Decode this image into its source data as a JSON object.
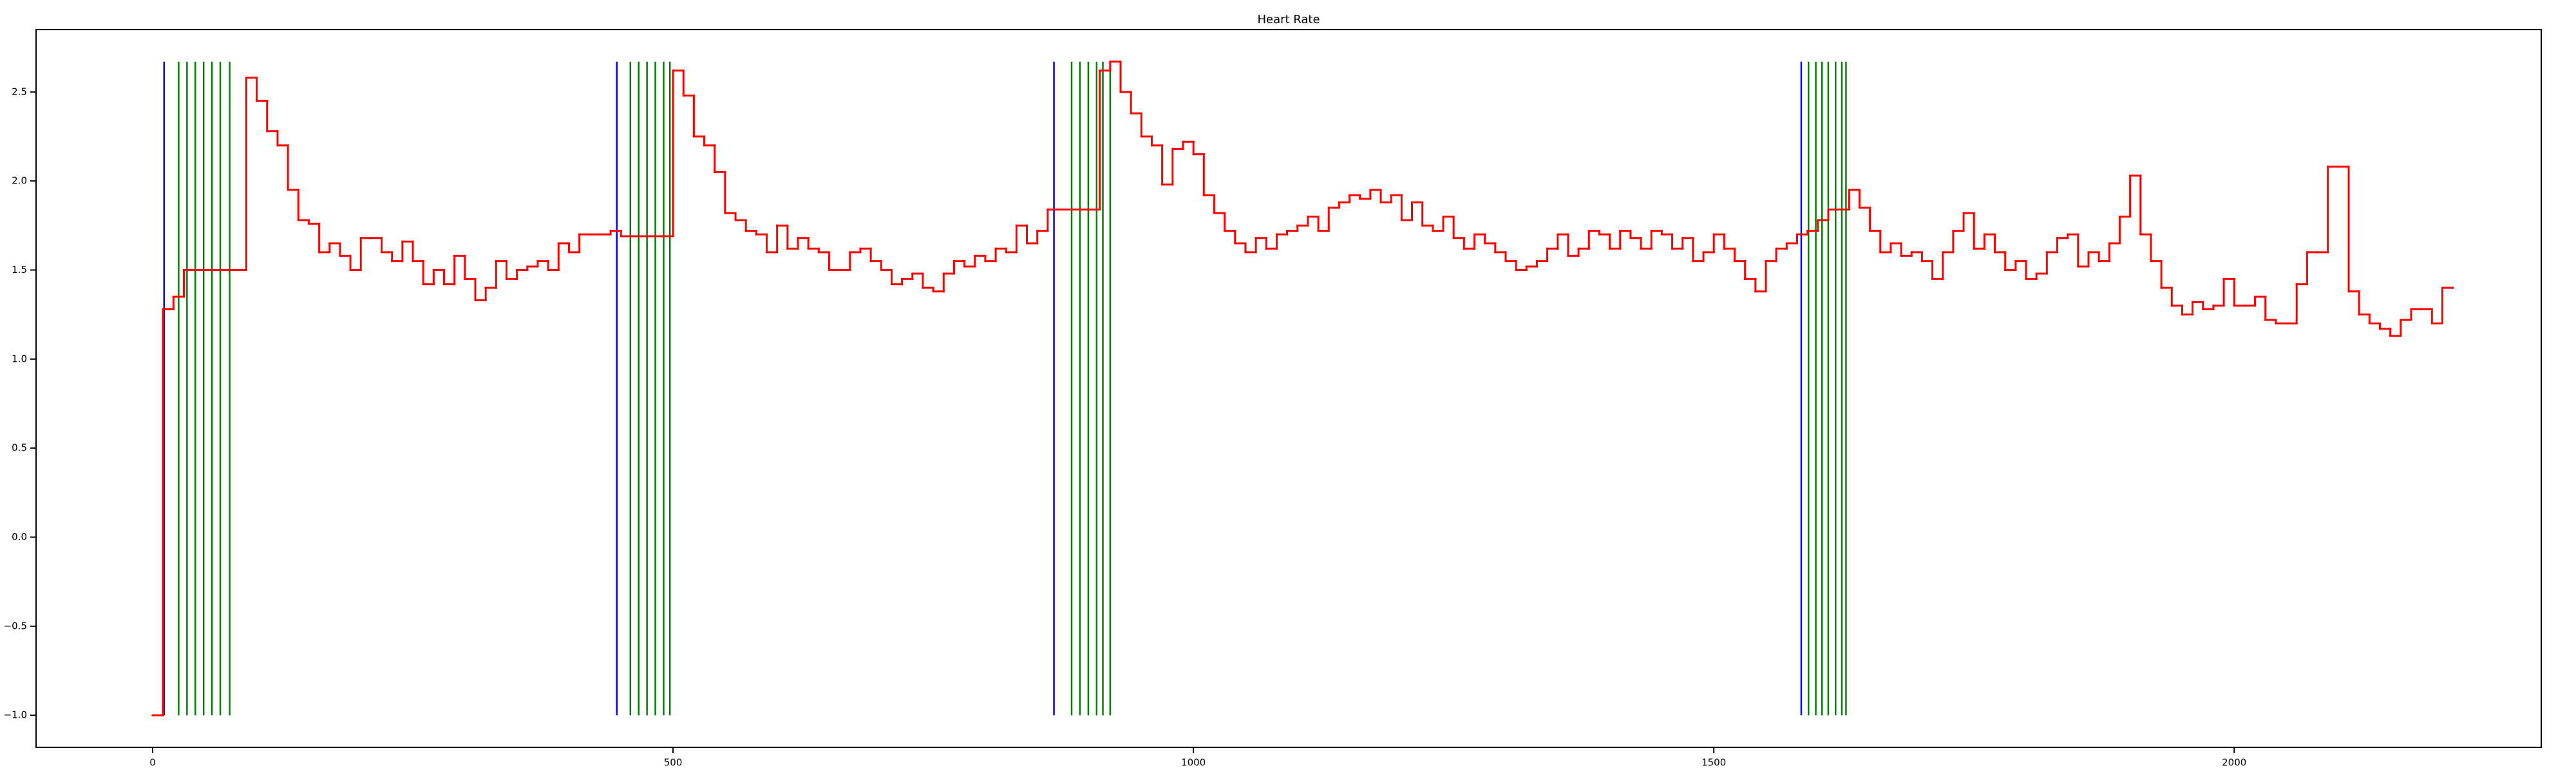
{
  "chart_data": {
    "type": "step",
    "title": "Heart Rate",
    "xlim": [
      -112,
      2295
    ],
    "ylim": [
      -1.18,
      2.85
    ],
    "xticks": [
      0,
      500,
      1000,
      1500,
      2000
    ],
    "yticks": [
      {
        "value": -1.0,
        "label": "−1.0"
      },
      {
        "value": -0.5,
        "label": "−0.5"
      },
      {
        "value": 0.0,
        "label": "0.0"
      },
      {
        "value": 0.5,
        "label": "0.5"
      },
      {
        "value": 1.0,
        "label": "1.0"
      },
      {
        "value": 1.5,
        "label": "1.5"
      },
      {
        "value": 2.0,
        "label": "2.0"
      },
      {
        "value": 2.5,
        "label": "2.5"
      }
    ],
    "grid": false,
    "vline_range": [
      -1.0,
      2.67
    ],
    "vline_groups": [
      {
        "color": "#0000ff",
        "x": [
          11,
          446,
          866,
          1584
        ]
      },
      {
        "color": "#008000",
        "x": [
          25,
          33,
          41,
          49,
          57,
          65,
          74,
          459,
          467,
          475,
          483,
          491,
          497,
          883,
          891,
          899,
          907,
          913,
          920,
          1591,
          1598,
          1604,
          1610,
          1617,
          1623,
          1627
        ]
      }
    ],
    "series": [
      {
        "color": "#ff0000",
        "x": [
          0,
          10,
          20,
          30,
          40,
          50,
          60,
          70,
          80,
          90,
          100,
          110,
          120,
          130,
          140,
          150,
          160,
          170,
          180,
          190,
          200,
          210,
          220,
          230,
          240,
          250,
          260,
          270,
          280,
          290,
          300,
          310,
          320,
          330,
          340,
          350,
          360,
          370,
          380,
          390,
          400,
          410,
          420,
          430,
          440,
          450,
          460,
          470,
          480,
          490,
          500,
          510,
          520,
          530,
          540,
          550,
          560,
          570,
          580,
          590,
          600,
          610,
          620,
          630,
          640,
          650,
          660,
          670,
          680,
          690,
          700,
          710,
          720,
          730,
          740,
          750,
          760,
          770,
          780,
          790,
          800,
          810,
          820,
          830,
          840,
          850,
          860,
          870,
          880,
          890,
          900,
          910,
          920,
          930,
          940,
          950,
          960,
          970,
          980,
          990,
          1000,
          1010,
          1020,
          1030,
          1040,
          1050,
          1060,
          1070,
          1080,
          1090,
          1100,
          1110,
          1120,
          1130,
          1140,
          1150,
          1160,
          1170,
          1180,
          1190,
          1200,
          1210,
          1220,
          1230,
          1240,
          1250,
          1260,
          1270,
          1280,
          1290,
          1300,
          1310,
          1320,
          1330,
          1340,
          1350,
          1360,
          1370,
          1380,
          1390,
          1400,
          1410,
          1420,
          1430,
          1440,
          1450,
          1460,
          1470,
          1480,
          1490,
          1500,
          1510,
          1520,
          1530,
          1540,
          1550,
          1560,
          1570,
          1580,
          1590,
          1600,
          1610,
          1620,
          1630,
          1640,
          1650,
          1660,
          1670,
          1680,
          1690,
          1700,
          1710,
          1720,
          1730,
          1740,
          1750,
          1760,
          1770,
          1780,
          1790,
          1800,
          1810,
          1820,
          1830,
          1840,
          1850,
          1860,
          1870,
          1880,
          1890,
          1900,
          1910,
          1920,
          1930,
          1940,
          1950,
          1960,
          1970,
          1980,
          1990,
          2000,
          2010,
          2020,
          2030,
          2040,
          2050,
          2060,
          2070,
          2080,
          2090,
          2100,
          2110,
          2120,
          2130,
          2140,
          2150,
          2160,
          2170,
          2180,
          2190,
          2200,
          2210
        ],
        "values": [
          -1.0,
          1.28,
          1.35,
          1.5,
          1.5,
          1.5,
          1.5,
          1.5,
          1.5,
          2.58,
          2.45,
          2.28,
          2.2,
          1.95,
          1.78,
          1.76,
          1.6,
          1.65,
          1.58,
          1.5,
          1.68,
          1.68,
          1.6,
          1.55,
          1.66,
          1.55,
          1.42,
          1.5,
          1.42,
          1.58,
          1.45,
          1.33,
          1.4,
          1.55,
          1.45,
          1.5,
          1.52,
          1.55,
          1.5,
          1.65,
          1.6,
          1.7,
          1.7,
          1.7,
          1.72,
          1.69,
          1.69,
          1.69,
          1.69,
          1.69,
          2.62,
          2.48,
          2.25,
          2.2,
          2.05,
          1.82,
          1.78,
          1.72,
          1.7,
          1.6,
          1.75,
          1.62,
          1.68,
          1.62,
          1.6,
          1.5,
          1.5,
          1.6,
          1.62,
          1.55,
          1.5,
          1.42,
          1.45,
          1.48,
          1.4,
          1.38,
          1.48,
          1.55,
          1.52,
          1.58,
          1.55,
          1.62,
          1.6,
          1.75,
          1.65,
          1.72,
          1.84,
          1.84,
          1.84,
          1.84,
          1.84,
          2.62,
          2.67,
          2.5,
          2.38,
          2.25,
          2.2,
          1.98,
          2.18,
          2.22,
          2.15,
          1.92,
          1.82,
          1.72,
          1.65,
          1.6,
          1.68,
          1.62,
          1.7,
          1.72,
          1.75,
          1.8,
          1.72,
          1.85,
          1.88,
          1.92,
          1.9,
          1.95,
          1.88,
          1.92,
          1.78,
          1.88,
          1.75,
          1.72,
          1.8,
          1.68,
          1.62,
          1.7,
          1.65,
          1.6,
          1.55,
          1.5,
          1.52,
          1.55,
          1.62,
          1.7,
          1.58,
          1.62,
          1.72,
          1.7,
          1.62,
          1.72,
          1.68,
          1.62,
          1.72,
          1.7,
          1.62,
          1.68,
          1.55,
          1.6,
          1.7,
          1.62,
          1.55,
          1.45,
          1.38,
          1.55,
          1.62,
          1.65,
          1.7,
          1.72,
          1.78,
          1.84,
          1.84,
          1.95,
          1.85,
          1.72,
          1.6,
          1.65,
          1.58,
          1.6,
          1.55,
          1.45,
          1.6,
          1.72,
          1.82,
          1.62,
          1.7,
          1.6,
          1.5,
          1.55,
          1.45,
          1.48,
          1.6,
          1.68,
          1.7,
          1.52,
          1.6,
          1.55,
          1.65,
          1.8,
          2.03,
          1.7,
          1.55,
          1.4,
          1.3,
          1.25,
          1.32,
          1.28,
          1.3,
          1.45,
          1.3,
          1.3,
          1.35,
          1.22,
          1.2,
          1.2,
          1.42,
          1.6,
          1.6,
          2.08,
          2.08,
          1.38,
          1.25,
          1.2,
          1.17,
          1.13,
          1.22,
          1.28,
          1.28,
          1.2,
          1.4,
          1.4
        ]
      }
    ]
  }
}
